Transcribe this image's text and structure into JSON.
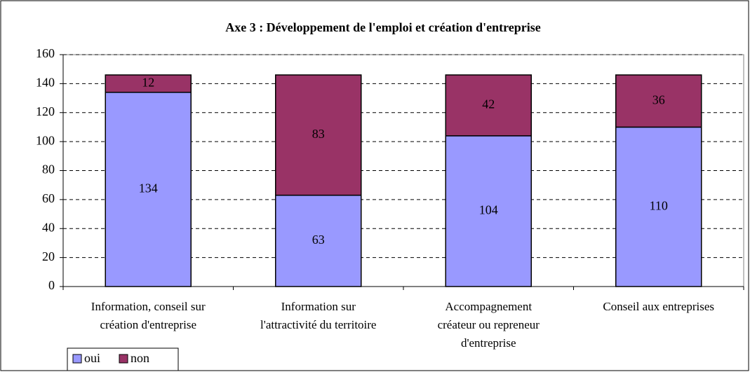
{
  "chart_data": {
    "type": "stacked_bar",
    "title": "Axe 3 : Développement de l'emploi et création d'entreprise",
    "categories": [
      "Information, conseil sur\ncréation d'entreprise",
      "Information sur\nl'attractivité du territoire",
      "Accompagnement\ncréateur ou repreneur\nd'entreprise",
      "Conseil aux entreprises"
    ],
    "series": [
      {
        "name": "oui",
        "color": "#9999ff",
        "values": [
          134,
          63,
          104,
          110
        ]
      },
      {
        "name": "non",
        "color": "#993366",
        "values": [
          12,
          83,
          42,
          36
        ]
      }
    ],
    "ylim": [
      0,
      160
    ],
    "yticks": [
      0,
      20,
      40,
      60,
      80,
      100,
      120,
      140,
      160
    ],
    "grid": true,
    "legend": "bottom-left"
  }
}
